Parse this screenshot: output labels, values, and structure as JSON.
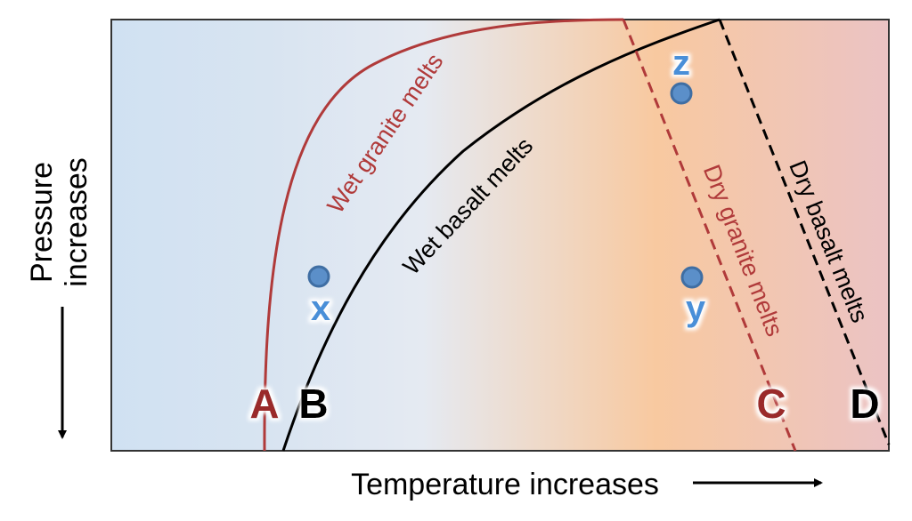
{
  "colors": {
    "granite": "#b03a3a",
    "basalt": "#000000",
    "point": "#5b8fc9",
    "point_label": "#4a8fd8",
    "letter_red": "#9a2a2a"
  },
  "axes": {
    "x_label": "Temperature increases",
    "y_label_line1": "Pressure",
    "y_label_line2": "increases"
  },
  "curves": {
    "wet_granite": "Wet granite melts",
    "wet_basalt": "Wet basalt melts",
    "dry_granite": "Dry granite melts",
    "dry_basalt": "Dry basalt melts"
  },
  "letters": {
    "a": "A",
    "b": "B",
    "c": "C",
    "d": "D"
  },
  "points": {
    "x": "x",
    "y": "y",
    "z": "z"
  }
}
